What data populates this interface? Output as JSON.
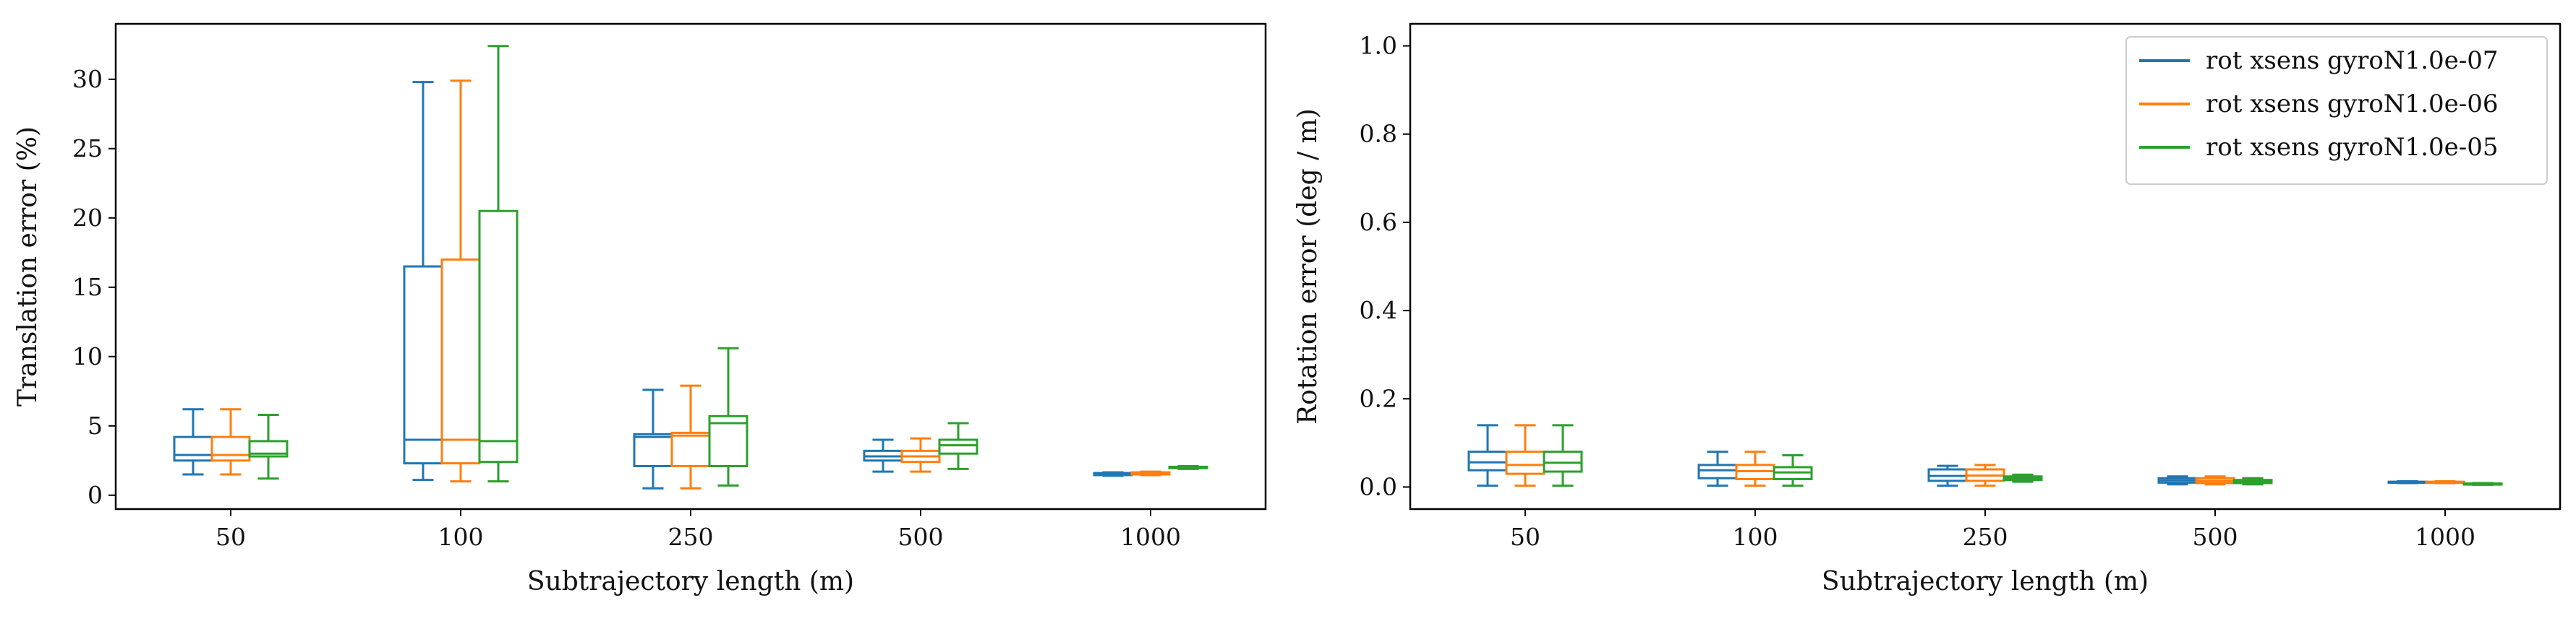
{
  "chart_data": [
    {
      "type": "box",
      "xlabel": "Subtrajectory length (m)",
      "ylabel": "Translation error (%)",
      "categories": [
        "50",
        "100",
        "250",
        "500",
        "1000"
      ],
      "ylim": [
        -1,
        34
      ],
      "yticks": [
        0,
        5,
        10,
        15,
        20,
        25,
        30
      ],
      "legend": false,
      "series": [
        {
          "color": "#1f77b4",
          "boxes": [
            {
              "whislo": 1.5,
              "q1": 2.5,
              "med": 2.9,
              "q3": 4.2,
              "whishi": 6.2
            },
            {
              "whislo": 1.1,
              "q1": 2.3,
              "med": 4.0,
              "q3": 16.5,
              "whishi": 29.8
            },
            {
              "whislo": 0.5,
              "q1": 2.1,
              "med": 4.2,
              "q3": 4.4,
              "whishi": 7.6
            },
            {
              "whislo": 1.7,
              "q1": 2.5,
              "med": 2.8,
              "q3": 3.2,
              "whishi": 4.0
            },
            {
              "whislo": 1.4,
              "q1": 1.45,
              "med": 1.5,
              "q3": 1.6,
              "whishi": 1.65
            }
          ]
        },
        {
          "color": "#ff7f0e",
          "boxes": [
            {
              "whislo": 1.5,
              "q1": 2.5,
              "med": 2.9,
              "q3": 4.2,
              "whishi": 6.2
            },
            {
              "whislo": 1.0,
              "q1": 2.3,
              "med": 4.0,
              "q3": 17.0,
              "whishi": 29.9
            },
            {
              "whislo": 0.5,
              "q1": 2.1,
              "med": 4.3,
              "q3": 4.5,
              "whishi": 7.9
            },
            {
              "whislo": 1.7,
              "q1": 2.4,
              "med": 2.8,
              "q3": 3.2,
              "whishi": 4.1
            },
            {
              "whislo": 1.45,
              "q1": 1.5,
              "med": 1.55,
              "q3": 1.65,
              "whishi": 1.7
            }
          ]
        },
        {
          "color": "#2ca02c",
          "boxes": [
            {
              "whislo": 1.2,
              "q1": 2.8,
              "med": 3.0,
              "q3": 3.9,
              "whishi": 5.8
            },
            {
              "whislo": 1.0,
              "q1": 2.4,
              "med": 3.9,
              "q3": 20.5,
              "whishi": 32.4
            },
            {
              "whislo": 0.7,
              "q1": 2.1,
              "med": 5.2,
              "q3": 5.7,
              "whishi": 10.6
            },
            {
              "whislo": 1.9,
              "q1": 3.0,
              "med": 3.6,
              "q3": 4.0,
              "whishi": 5.2
            },
            {
              "whislo": 1.9,
              "q1": 1.95,
              "med": 2.0,
              "q3": 2.05,
              "whishi": 2.1
            }
          ]
        }
      ]
    },
    {
      "type": "box",
      "xlabel": "Subtrajectory length (m)",
      "ylabel": "Rotation error (deg / m)",
      "categories": [
        "50",
        "100",
        "250",
        "500",
        "1000"
      ],
      "ylim": [
        -0.05,
        1.05
      ],
      "yticks": [
        0.0,
        0.2,
        0.4,
        0.6,
        0.8,
        1.0
      ],
      "legend": true,
      "legend_loc": "upper right",
      "series": [
        {
          "name": "rot xsens gyroN1.0e-07",
          "color": "#1f77b4",
          "boxes": [
            {
              "whislo": 0.003,
              "q1": 0.038,
              "med": 0.056,
              "q3": 0.08,
              "whishi": 0.14
            },
            {
              "whislo": 0.003,
              "q1": 0.02,
              "med": 0.038,
              "q3": 0.05,
              "whishi": 0.08
            },
            {
              "whislo": 0.003,
              "q1": 0.014,
              "med": 0.025,
              "q3": 0.04,
              "whishi": 0.048
            },
            {
              "whislo": 0.006,
              "q1": 0.01,
              "med": 0.015,
              "q3": 0.02,
              "whishi": 0.024
            },
            {
              "whislo": 0.009,
              "q1": 0.01,
              "med": 0.011,
              "q3": 0.012,
              "whishi": 0.013
            }
          ]
        },
        {
          "name": "rot xsens gyroN1.0e-06",
          "color": "#ff7f0e",
          "boxes": [
            {
              "whislo": 0.003,
              "q1": 0.03,
              "med": 0.05,
              "q3": 0.08,
              "whishi": 0.14
            },
            {
              "whislo": 0.003,
              "q1": 0.018,
              "med": 0.036,
              "q3": 0.05,
              "whishi": 0.08
            },
            {
              "whislo": 0.003,
              "q1": 0.014,
              "med": 0.026,
              "q3": 0.04,
              "whishi": 0.05
            },
            {
              "whislo": 0.006,
              "q1": 0.009,
              "med": 0.014,
              "q3": 0.02,
              "whishi": 0.024
            },
            {
              "whislo": 0.009,
              "q1": 0.01,
              "med": 0.011,
              "q3": 0.012,
              "whishi": 0.013
            }
          ]
        },
        {
          "name": "rot xsens gyroN1.0e-05",
          "color": "#2ca02c",
          "boxes": [
            {
              "whislo": 0.003,
              "q1": 0.035,
              "med": 0.055,
              "q3": 0.08,
              "whishi": 0.14
            },
            {
              "whislo": 0.003,
              "q1": 0.018,
              "med": 0.033,
              "q3": 0.045,
              "whishi": 0.072
            },
            {
              "whislo": 0.012,
              "q1": 0.016,
              "med": 0.02,
              "q3": 0.024,
              "whishi": 0.028
            },
            {
              "whislo": 0.006,
              "q1": 0.009,
              "med": 0.013,
              "q3": 0.016,
              "whishi": 0.02
            },
            {
              "whislo": 0.005,
              "q1": 0.006,
              "med": 0.007,
              "q3": 0.008,
              "whishi": 0.009
            }
          ]
        }
      ]
    }
  ]
}
